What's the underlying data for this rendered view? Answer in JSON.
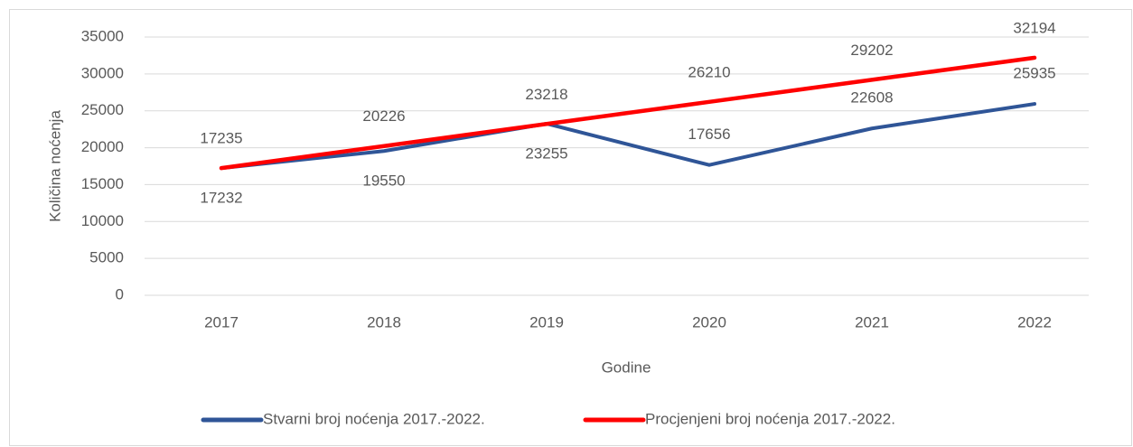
{
  "chart_data": {
    "type": "line",
    "x_label": "Godine",
    "y_label": "Količina noćenja",
    "categories": [
      "2017",
      "2018",
      "2019",
      "2020",
      "2021",
      "2022"
    ],
    "series": [
      {
        "name": "Stvarni broj noćenja 2017.-2022.",
        "color": "#2f5597",
        "values": [
          17232,
          19550,
          23255,
          17656,
          22608,
          25935
        ]
      },
      {
        "name": "Procjenjeni broj noćenja 2017.-2022.",
        "color": "#ff0000",
        "values": [
          17235,
          20226,
          23218,
          26210,
          29202,
          32194
        ]
      }
    ],
    "ylim": [
      0,
      35000
    ],
    "yticks": [
      0,
      5000,
      10000,
      15000,
      20000,
      25000,
      30000,
      35000
    ],
    "grid": true,
    "legend": "bottom"
  }
}
